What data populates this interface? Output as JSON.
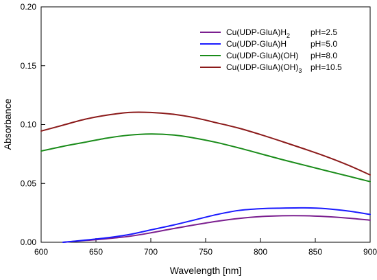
{
  "chart_data": {
    "type": "line",
    "title": "",
    "xlabel": "Wavelength [nm]",
    "ylabel": "Absorbance",
    "xlim": [
      600,
      900
    ],
    "ylim": [
      0,
      0.2
    ],
    "xticks": [
      600,
      650,
      700,
      750,
      800,
      850,
      900
    ],
    "yticks": [
      0.0,
      0.05,
      0.1,
      0.15,
      0.2
    ],
    "xtick_labels": [
      "600",
      "650",
      "700",
      "750",
      "800",
      "850",
      "900"
    ],
    "ytick_labels": [
      "0.00",
      "0.05",
      "0.10",
      "0.15",
      "0.20"
    ],
    "grid": false,
    "legend_position": "top-right",
    "legend": [
      {
        "formula": "Cu(UDP-GluA)H",
        "subscript": "2",
        "ph": "pH=2.5"
      },
      {
        "formula": "Cu(UDP-GluA)H",
        "subscript": "",
        "ph": "pH=5.0"
      },
      {
        "formula": "Cu(UDP-GluA)(OH)",
        "subscript": "",
        "ph": "pH=8.0"
      },
      {
        "formula": "Cu(UDP-GluA)(OH)",
        "subscript": "3",
        "ph": "pH=10.5"
      }
    ],
    "series": [
      {
        "name": "Cu(UDP-GluA)H2 pH=2.5",
        "color": "#7b1f8f",
        "x": [
          620,
          640,
          660,
          680,
          700,
          720,
          740,
          760,
          780,
          800,
          820,
          840,
          860,
          880,
          900
        ],
        "y": [
          0.0,
          0.0015,
          0.003,
          0.005,
          0.008,
          0.0115,
          0.0148,
          0.0178,
          0.0202,
          0.0218,
          0.0225,
          0.0225,
          0.0218,
          0.0205,
          0.0188
        ]
      },
      {
        "name": "Cu(UDP-GluA)H pH=5.0",
        "color": "#1a1aff",
        "x": [
          620,
          640,
          660,
          680,
          700,
          720,
          740,
          760,
          780,
          800,
          820,
          840,
          860,
          880,
          900
        ],
        "y": [
          0.0,
          0.0018,
          0.0038,
          0.0065,
          0.0105,
          0.0145,
          0.019,
          0.0235,
          0.027,
          0.0285,
          0.029,
          0.0292,
          0.0285,
          0.0265,
          0.0236
        ]
      },
      {
        "name": "Cu(UDP-GluA)(OH) pH=8.0",
        "color": "#1a8c1a",
        "x": [
          600,
          620,
          640,
          660,
          680,
          700,
          720,
          740,
          760,
          780,
          800,
          820,
          840,
          860,
          880,
          900
        ],
        "y": [
          0.0775,
          0.0815,
          0.085,
          0.0885,
          0.091,
          0.092,
          0.0912,
          0.0885,
          0.0848,
          0.0802,
          0.0752,
          0.0702,
          0.0655,
          0.0608,
          0.0562,
          0.0515
        ]
      },
      {
        "name": "Cu(UDP-GluA)(OH)3 pH=10.5",
        "color": "#8b1a1a",
        "x": [
          600,
          620,
          640,
          660,
          680,
          700,
          720,
          740,
          760,
          780,
          800,
          820,
          840,
          860,
          880,
          900
        ],
        "y": [
          0.0945,
          0.0995,
          0.1045,
          0.108,
          0.1103,
          0.1103,
          0.1088,
          0.1058,
          0.1015,
          0.097,
          0.0915,
          0.0855,
          0.0793,
          0.0728,
          0.0655,
          0.0572
        ]
      }
    ]
  }
}
